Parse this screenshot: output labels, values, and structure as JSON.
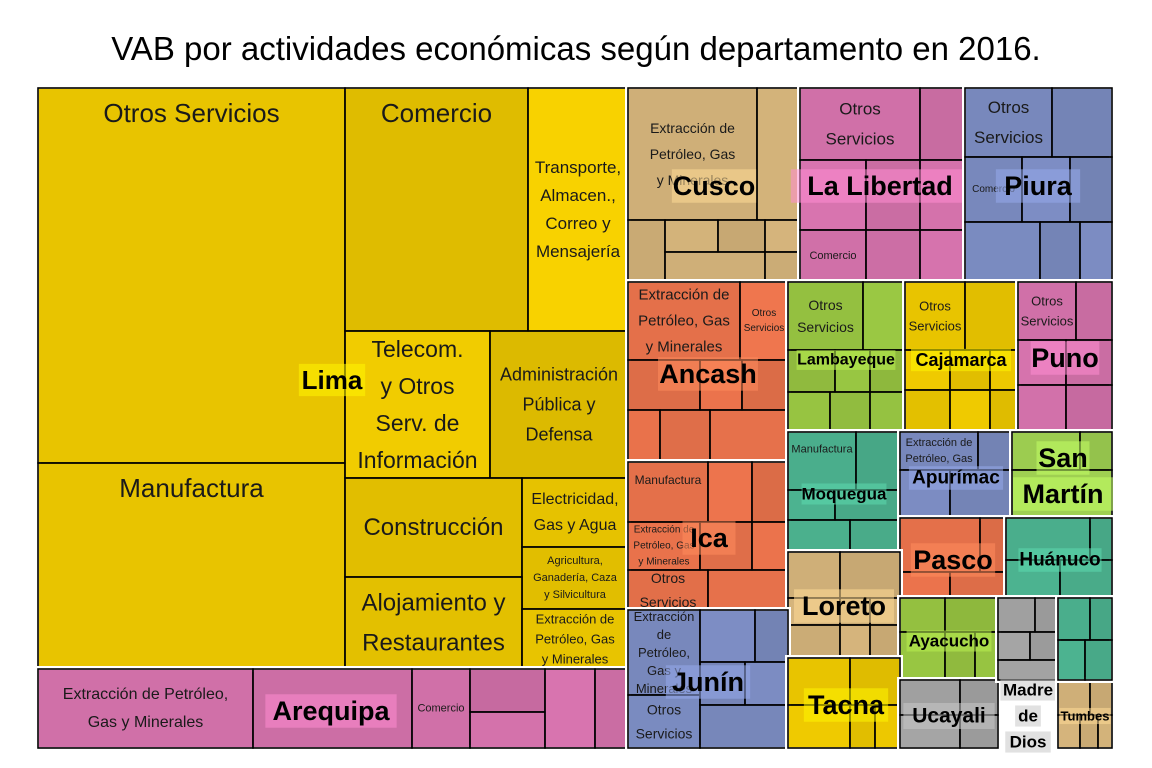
{
  "chart_data": {
    "type": "treemap",
    "title": "VAB por actividades económicas según departamento en 2016.",
    "departments": [
      {
        "name": "Lima",
        "color": "#e8c400",
        "label_lines": [
          "Lima"
        ],
        "activities": [
          {
            "label_lines": [
              "Otros Servicios"
            ]
          },
          {
            "label_lines": [
              "Manufactura"
            ]
          },
          {
            "label_lines": [
              "Comercio"
            ]
          },
          {
            "label_lines": [
              "Transporte,",
              "Almacen.,",
              "Correo y",
              "Mensajería"
            ]
          },
          {
            "label_lines": [
              "Telecom.",
              "y Otros",
              "Serv. de",
              "Información"
            ]
          },
          {
            "label_lines": [
              "Administración",
              "Pública y",
              "Defensa"
            ]
          },
          {
            "label_lines": [
              "Construcción"
            ]
          },
          {
            "label_lines": [
              "Electricidad,",
              "Gas y Agua"
            ]
          },
          {
            "label_lines": [
              "Agricultura,",
              "Ganadería, Caza",
              "y Silvicultura"
            ]
          },
          {
            "label_lines": [
              "Alojamiento y",
              "Restaurantes"
            ]
          },
          {
            "label_lines": [
              "Extracción de",
              "Petróleo, Gas",
              "y Minerales"
            ]
          }
        ]
      },
      {
        "name": "Arequipa",
        "color": "#d070a8",
        "label_lines": [
          "Arequipa"
        ],
        "activities": [
          {
            "label_lines": [
              "Extracción de Petróleo,",
              "Gas y Minerales"
            ]
          },
          {
            "label_lines": [
              "Comercio"
            ]
          }
        ]
      },
      {
        "name": "Cusco",
        "color": "#cfaf78",
        "label_lines": [
          "Cusco"
        ],
        "activities": [
          {
            "label_lines": [
              "Extracción de",
              "Petróleo, Gas",
              "y Minerales"
            ]
          }
        ]
      },
      {
        "name": "La Libertad",
        "color": "#d070a8",
        "label_lines": [
          "La Libertad"
        ],
        "activities": [
          {
            "label_lines": [
              "Otros",
              "Servicios"
            ]
          },
          {
            "label_lines": [
              "Comercio"
            ]
          }
        ]
      },
      {
        "name": "Piura",
        "color": "#7888bc",
        "label_lines": [
          "Piura"
        ],
        "activities": [
          {
            "label_lines": [
              "Otros",
              "Servicios"
            ]
          },
          {
            "label_lines": [
              "Comercio"
            ]
          }
        ]
      },
      {
        "name": "Ancash",
        "color": "#e4704a",
        "label_lines": [
          "Ancash"
        ],
        "activities": [
          {
            "label_lines": [
              "Extracción de",
              "Petróleo, Gas",
              "y Minerales"
            ]
          },
          {
            "label_lines": [
              "Otros",
              "Servicios"
            ]
          }
        ]
      },
      {
        "name": "Lambayeque",
        "color": "#94c040",
        "label_lines": [
          "Lambayeque"
        ],
        "activities": [
          {
            "label_lines": [
              "Otros",
              "Servicios"
            ]
          }
        ]
      },
      {
        "name": "Cajamarca",
        "color": "#e8c400",
        "label_lines": [
          "Cajamarca"
        ],
        "activities": [
          {
            "label_lines": [
              "Otros",
              "Servicios"
            ]
          }
        ]
      },
      {
        "name": "Puno",
        "color": "#d070a8",
        "label_lines": [
          "Puno"
        ],
        "activities": [
          {
            "label_lines": [
              "Otros",
              "Servicios"
            ]
          }
        ]
      },
      {
        "name": "Ica",
        "color": "#e4704a",
        "label_lines": [
          "Ica"
        ],
        "activities": [
          {
            "label_lines": [
              "Manufactura"
            ]
          },
          {
            "label_lines": [
              "Extracción de",
              "Petróleo, Gas",
              "y Minerales"
            ]
          },
          {
            "label_lines": [
              "Otros",
              "Servicios"
            ]
          }
        ]
      },
      {
        "name": "Moquegua",
        "color": "#4aae8c",
        "label_lines": [
          "Moquegua"
        ],
        "activities": [
          {
            "label_lines": [
              "Manufactura"
            ]
          }
        ]
      },
      {
        "name": "Apurímac",
        "color": "#7888bc",
        "label_lines": [
          "Apurímac"
        ],
        "activities": [
          {
            "label_lines": [
              "Extracción de",
              "Petróleo, Gas"
            ]
          }
        ]
      },
      {
        "name": "San Martín",
        "color": "#9ccc50",
        "label_lines": [
          "San",
          "Martín"
        ],
        "activities": []
      },
      {
        "name": "Pasco",
        "color": "#e4704a",
        "label_lines": [
          "Pasco"
        ],
        "activities": []
      },
      {
        "name": "Huánuco",
        "color": "#4aae8c",
        "label_lines": [
          "Huánuco"
        ],
        "activities": []
      },
      {
        "name": "Loreto",
        "color": "#cfaf78",
        "label_lines": [
          "Loreto"
        ],
        "activities": []
      },
      {
        "name": "Junín",
        "color": "#7888bc",
        "label_lines": [
          "Junín"
        ],
        "activities": [
          {
            "label_lines": [
              "Extracción",
              "de",
              "Petróleo,",
              "Gas y",
              "Minerales"
            ]
          },
          {
            "label_lines": [
              "Otros",
              "Servicios"
            ]
          }
        ]
      },
      {
        "name": "Ayacucho",
        "color": "#94c040",
        "label_lines": [
          "Ayacucho"
        ],
        "activities": []
      },
      {
        "name": "Tacna",
        "color": "#e8c400",
        "label_lines": [
          "Tacna"
        ],
        "activities": []
      },
      {
        "name": "Ucayali",
        "color": "#a0a0a0",
        "label_lines": [
          "Ucayali"
        ],
        "activities": []
      },
      {
        "name": "Madre de Dios",
        "color": "#a0a0a0",
        "label_lines": [
          "Madre",
          "de",
          "Dios"
        ],
        "activities": []
      },
      {
        "name": "Tumbes",
        "color": "#cfaf78",
        "label_lines": [
          "Tumbes"
        ],
        "activities": []
      },
      {
        "name": "",
        "color": "#4aae8c",
        "label_lines": [],
        "activities": []
      }
    ]
  }
}
